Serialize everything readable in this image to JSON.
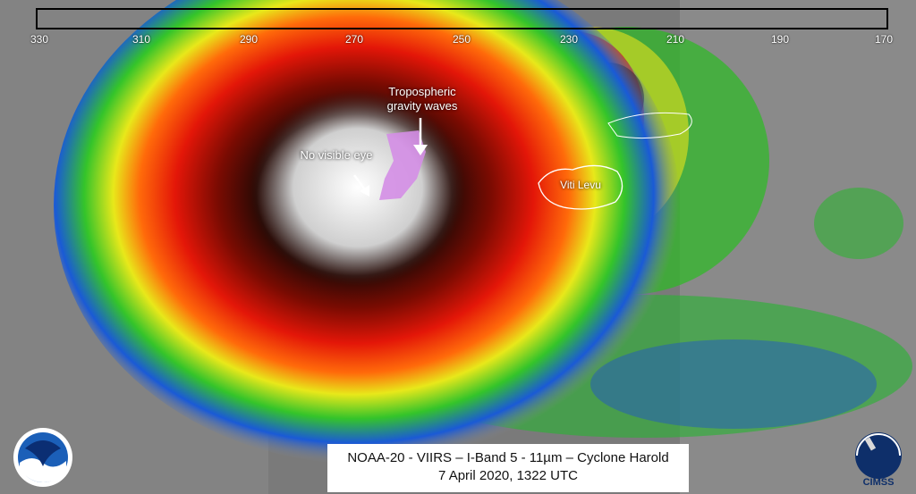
{
  "colorbar": {
    "ticks": [
      "330",
      "310",
      "290",
      "270",
      "250",
      "230",
      "210",
      "190",
      "170"
    ],
    "stops": [
      "#1a1a1a",
      "#ffffff",
      "#38d5ff",
      "#0b3cd6",
      "#22c422",
      "#f3f31a",
      "#e51a0e",
      "#1a0000",
      "#ffffff",
      "#d77ef0"
    ]
  },
  "annotations": {
    "waves": "Tropospheric gravity waves",
    "eye": "No visible eye",
    "island": "Viti Levu"
  },
  "caption": {
    "line1": "NOAA-20 - VIIRS – I-Band 5 - 11µm – Cyclone Harold",
    "line2": "7 April 2020, 1322 UTC"
  },
  "logos": {
    "left": "noaa-logo",
    "right_text": "CIMSS"
  }
}
